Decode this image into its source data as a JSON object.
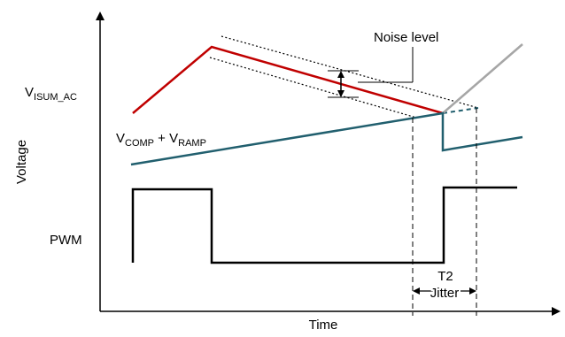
{
  "labels": {
    "v_isum": {
      "main": "V",
      "sub": "ISUM_AC"
    },
    "v_comp": {
      "main1": "V",
      "sub1": "COMP",
      "plus": " + ",
      "main2": "V",
      "sub2": "RAMP"
    },
    "noise": "Noise level",
    "pwm": "PWM",
    "y_axis": "Voltage",
    "x_axis": "Time",
    "t2": "T2",
    "jitter": "Jitter"
  },
  "colors": {
    "isum": "#c00000",
    "comp_ramp": "#215f6e",
    "extension": "#a6a6a6",
    "pwm": "#000000",
    "axis": "#000000"
  }
}
